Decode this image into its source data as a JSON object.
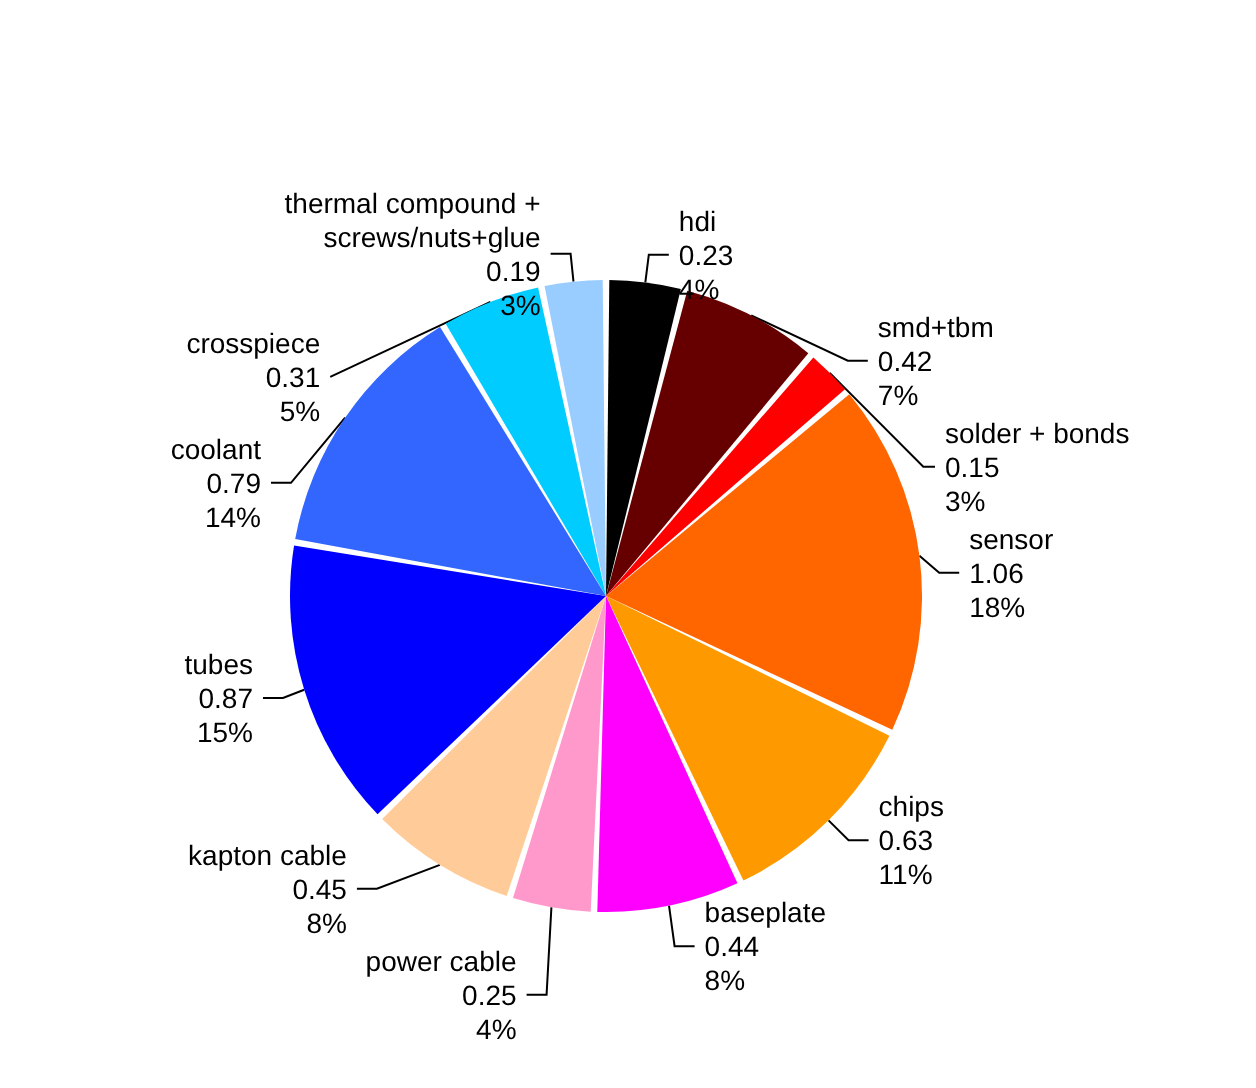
{
  "chart_data": {
    "type": "pie",
    "categories": [
      "hdi",
      "smd+tbm",
      "solder + bonds",
      "sensor",
      "chips",
      "baseplate",
      "power cable",
      "kapton cable",
      "tubes",
      "coolant",
      "crosspiece",
      "thermal compound +\nscrews/nuts+glue"
    ],
    "values": [
      0.23,
      0.42,
      0.15,
      1.06,
      0.63,
      0.44,
      0.25,
      0.45,
      0.87,
      0.79,
      0.31,
      0.19
    ],
    "value_labels": [
      "0.23\n4%",
      "0.42\n7%",
      "0.15\n3%",
      "1.06\n18%",
      "0.63\n11%",
      "0.44\n8%",
      "0.25\n4%",
      "0.45\n8%",
      "0.87\n15%",
      "0.79\n14%",
      "0.31\n5%",
      "0.19\n3%"
    ],
    "colors": [
      "#000000",
      "#660000",
      "#ff0000",
      "#ff6600",
      "#ff9900",
      "#ff00ff",
      "#ff99cc",
      "#ffcc99",
      "#0000ff",
      "#3366ff",
      "#00ccff",
      "#99ccff"
    ],
    "legend": false
  }
}
